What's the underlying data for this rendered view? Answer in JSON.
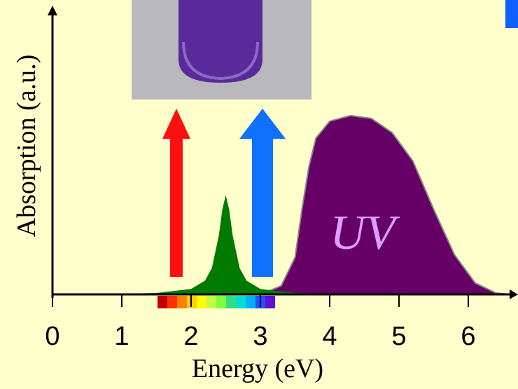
{
  "chart_data": {
    "type": "area",
    "xlabel": "Energy (eV)",
    "ylabel": "Absorption (a.u.)",
    "annotation": "UV",
    "xlim": [
      0,
      6.7
    ],
    "ylim": [
      0,
      1
    ],
    "xticks": [
      0,
      1,
      2,
      3,
      4,
      5,
      6
    ],
    "series": [
      {
        "color": "#007a00",
        "x": [
          0.5,
          1.0,
          1.5,
          2.0,
          2.2,
          2.3,
          2.4,
          2.45,
          2.5,
          2.55,
          2.6,
          2.7,
          2.8,
          3.0,
          3.5,
          4.0,
          5.0
        ],
        "values": [
          0.0013,
          0.0022,
          0.005,
          0.019,
          0.048,
          0.093,
          0.207,
          0.298,
          0.35,
          0.298,
          0.207,
          0.093,
          0.048,
          0.019,
          0.005,
          0.0022,
          0.0008
        ]
      },
      {
        "color": "#660066",
        "x": [
          3.0,
          3.3,
          3.5,
          3.6,
          3.7,
          3.8,
          4.0,
          4.3,
          4.6,
          4.9,
          5.2,
          5.5,
          5.8,
          6.1,
          6.4,
          6.6
        ],
        "values": [
          0,
          0.03,
          0.13,
          0.3,
          0.45,
          0.55,
          0.61,
          0.63,
          0.62,
          0.57,
          0.47,
          0.3,
          0.14,
          0.04,
          0.005,
          0
        ]
      }
    ]
  }
}
